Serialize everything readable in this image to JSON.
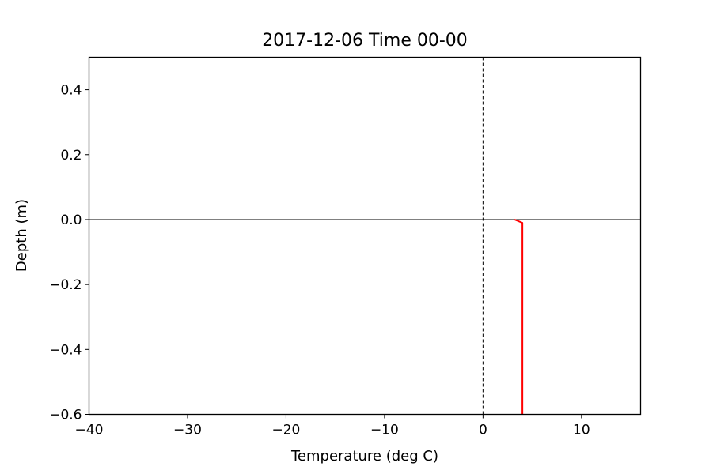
{
  "chart_data": {
    "type": "line",
    "title": "2017-12-06 Time 00-00",
    "xlabel": "Temperature (deg C)",
    "ylabel": "Depth (m)",
    "xlim": [
      -40,
      16
    ],
    "ylim": [
      -0.6,
      0.5
    ],
    "xticks": [
      -40,
      -30,
      -20,
      -10,
      0,
      10
    ],
    "xtick_labels": [
      "−40",
      "−30",
      "−20",
      "−10",
      "0",
      "10"
    ],
    "yticks": [
      0.4,
      0.2,
      0.0,
      -0.2,
      -0.4,
      -0.6
    ],
    "ytick_labels": [
      "0.4",
      "0.2",
      "0.0",
      "−0.2",
      "−0.4",
      "−0.6"
    ],
    "grid": false,
    "reference_lines": [
      {
        "orientation": "vertical",
        "value": 0,
        "style": "dashed",
        "color": "#000000"
      },
      {
        "orientation": "horizontal",
        "value": 0,
        "style": "solid",
        "color": "#000000"
      }
    ],
    "series": [
      {
        "color": "#ff0000",
        "x": [
          3.2,
          3.6,
          4.0,
          4.0,
          4.0
        ],
        "y": [
          0.0,
          -0.005,
          -0.01,
          -0.3,
          -0.6
        ]
      }
    ]
  }
}
